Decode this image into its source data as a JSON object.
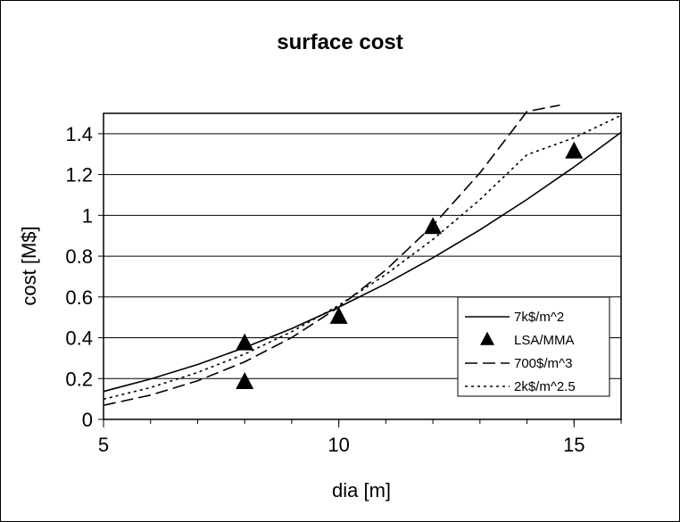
{
  "chart_data": {
    "type": "line",
    "title": "surface cost",
    "xlabel": "dia [m]",
    "ylabel": "cost [M$]",
    "xlim": [
      5,
      16
    ],
    "ylim": [
      0,
      1.5
    ],
    "xticks": [
      5,
      10,
      15
    ],
    "yticks": [
      0,
      0.2,
      0.4,
      0.6,
      0.8,
      1,
      1.2,
      1.4
    ],
    "ytick_labels": [
      "0",
      "0.2",
      "0.4",
      "0.6",
      "0.8",
      "1",
      "1.2",
      "1.4"
    ],
    "xtick_labels": [
      "5",
      "10",
      "15"
    ],
    "grid": "horizontal",
    "legend_position": "bottom-right",
    "series": [
      {
        "name": "7k$/m^2",
        "style": "solid",
        "x": [
          5,
          6,
          7,
          8,
          9,
          10,
          11,
          12,
          13,
          14,
          15,
          16
        ],
        "y": [
          0.137,
          0.198,
          0.269,
          0.352,
          0.445,
          0.55,
          0.665,
          0.792,
          0.929,
          1.078,
          1.237,
          1.407
        ]
      },
      {
        "name": "LSA/MMA",
        "style": "markers",
        "marker": "triangle",
        "x": [
          8,
          8,
          10,
          12,
          15
        ],
        "y": [
          0.37,
          0.18,
          0.5,
          0.94,
          1.31
        ]
      },
      {
        "name": "700$/m^3",
        "style": "dashed",
        "x": [
          5,
          6,
          7,
          8,
          9,
          10,
          11,
          12,
          13,
          14,
          14.7
        ],
        "y": [
          0.069,
          0.119,
          0.189,
          0.282,
          0.401,
          0.55,
          0.732,
          0.95,
          1.208,
          1.509,
          1.54
        ]
      },
      {
        "name": "2k$/m^2.5",
        "style": "dotted",
        "x": [
          5,
          6,
          7,
          8,
          9,
          10,
          11,
          12,
          13,
          14,
          15,
          16
        ],
        "y": [
          0.099,
          0.156,
          0.23,
          0.32,
          0.43,
          0.559,
          0.71,
          0.882,
          1.077,
          1.297,
          1.38,
          1.49
        ]
      }
    ]
  },
  "colors": {
    "line": "#000000",
    "background": "#ffffff",
    "grid": "#000000"
  }
}
